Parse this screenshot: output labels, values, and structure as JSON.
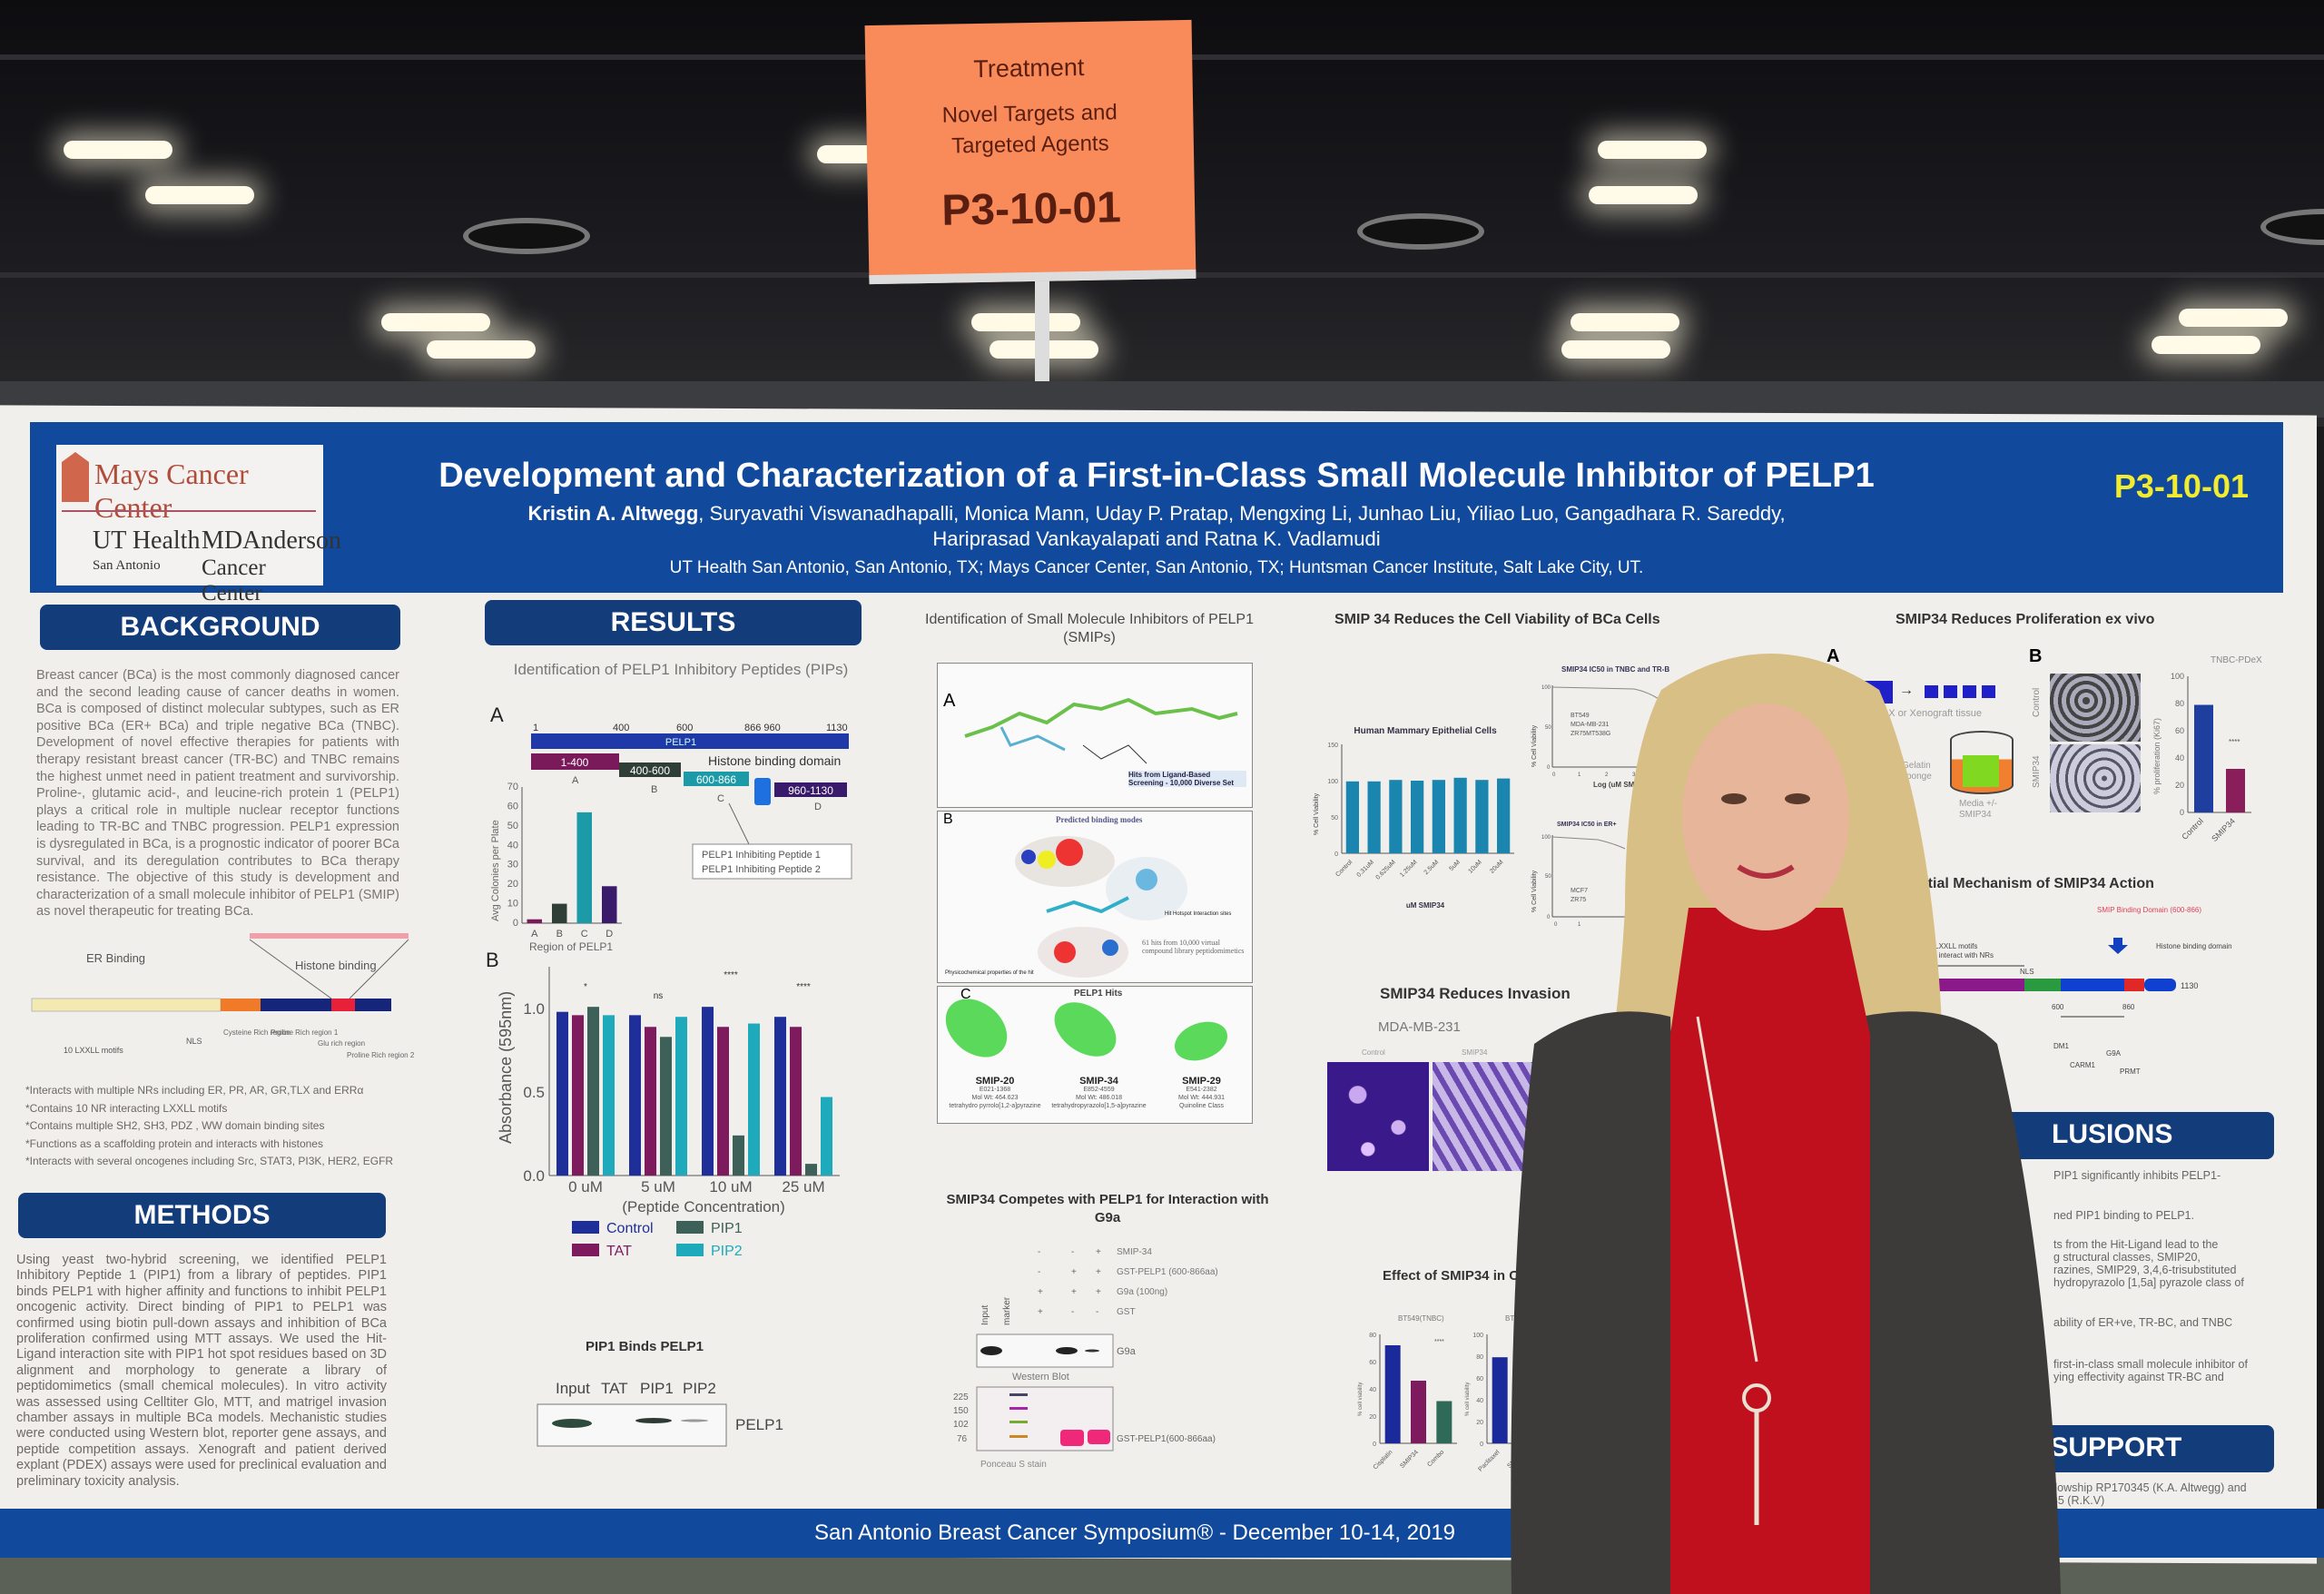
{
  "sign": {
    "category": "Treatment",
    "topic": "Novel Targets and Targeted Agents",
    "poster_id": "P3-10-01"
  },
  "header": {
    "logo": {
      "line1": "Mays Cancer Center",
      "line2a": "UT Health",
      "line2b": "MDAnderson",
      "line3a": "San Antonio",
      "line3b": "Cancer Center"
    },
    "title": "Development and Characterization of a First-in-Class Small Molecule Inhibitor of PELP1",
    "authors_lead": "Kristin A. Altwegg",
    "authors_rest": ", Suryavathi Viswanadhapalli, Monica Mann, Uday P. Pratap, Mengxing Li, Junhao Liu, Yiliao Luo, Gangadhara R. Sareddy,",
    "authors_line2": "Hariprasad Vankayalapati and Ratna K. Vadlamudi",
    "affiliations": "UT Health San Antonio, San Antonio, TX; Mays Cancer Center, San Antonio, TX; Huntsman Cancer Institute, Salt Lake City, UT.",
    "poster_id": "P3-10-01"
  },
  "background": {
    "heading": "BACKGROUND",
    "text": "Breast cancer (BCa) is the most commonly diagnosed cancer and the second leading cause of cancer deaths in women. BCa is composed of distinct molecular subtypes, such as ER positive BCa (ER+ BCa) and triple negative BCa (TNBC). Development of novel effective therapies for patients with therapy resistant breast cancer (TR-BC) and TNBC remains the highest unmet need in patient treatment and survivorship. Proline-, glutamic acid-, and leucine-rich protein 1 (PELP1) plays a critical role in multiple nuclear receptor functions leading to TR-BC and TNBC progression. PELP1 expression is dysregulated in BCa, is a prognostic indicator of poorer BCa survival, and its deregulation contributes to BCa therapy resistance. The objective of this study is development and characterization of a small molecule inhibitor of PELP1 (SMIP) as novel therapeutic for treating BCa.",
    "diagram": {
      "er_binding": "ER Binding",
      "histone_binding": "Histone binding",
      "motifs": "10 LXXLL motifs",
      "nls": "NLS",
      "regions": [
        "Cysteine Rich region",
        "Proline Rich region 1",
        "Glu rich region",
        "Proline Rich region 2"
      ]
    },
    "bullets": [
      "*Interacts with multiple NRs including ER, PR, AR, GR,TLX and ERRα",
      "*Contains 10 NR interacting LXXLL motifs",
      "*Contains multiple SH2, SH3, PDZ , WW domain binding sites",
      "*Functions as a scaffolding protein and interacts with histones",
      "*Interacts with several oncogenes including Src, STAT3, PI3K, HER2, EGFR"
    ]
  },
  "methods": {
    "heading": "METHODS",
    "text": "Using yeast two-hybrid screening, we identified PELP1 Inhibitory Peptide 1 (PIP1) from a library of peptides. PIP1 binds PELP1 with higher affinity and functions to inhibit PELP1 oncogenic activity. Direct binding of PIP1 to PELP1 was confirmed using biotin pull-down assays and inhibition of BCa proliferation confirmed using MTT assays. We used the Hit-Ligand interaction site with PIP1 hot spot residues based on 3D alignment and morphology to generate a library of peptidomimetics (small chemical molecules). In vitro activity was assessed using Celltiter Glo, MTT, and matrigel invasion chamber assays in multiple BCa models. Mechanistic studies were conducted using Western blot, reporter gene assays, and peptide competition assays. Xenograft and patient derived explant (PDEX) assays were used for preclinical evaluation and preliminary toxicity analysis."
  },
  "results": {
    "heading": "RESULTS",
    "pips_title": "Identification of PELP1 Inhibitory Peptides (PIPs)",
    "panel_a": "A",
    "panel_b": "B",
    "map": {
      "ticks": [
        "1",
        "400",
        "600",
        "866 960",
        "1130"
      ],
      "pelp1": "PELP1",
      "frags": [
        "1-400",
        "400-600",
        "600-866",
        "960-1130"
      ],
      "frag_letters": [
        "A",
        "B",
        "C",
        "D"
      ],
      "histone": "Histone binding domain",
      "callout": [
        "PELP1 Inhibiting Peptide 1",
        "PELP1 Inhibiting Peptide 2"
      ]
    },
    "chart_a": {
      "ylabel": "Avg Colonies per Plate",
      "xlabel": "Region of PELP1",
      "categories": [
        "A",
        "B",
        "C",
        "D"
      ],
      "values": [
        2,
        10,
        57,
        19
      ],
      "ylim": [
        0,
        70
      ],
      "yticks": [
        0,
        10,
        20,
        30,
        40,
        50,
        60,
        70
      ],
      "colors": [
        "#7a1a5a",
        "#2f3f38",
        "#1c9aa8",
        "#3a1a6a"
      ]
    },
    "chart_b": {
      "ylabel": "Absorbance (595nm)",
      "xlabel": "(Peptide Concentration)",
      "categories": [
        "0 uM",
        "5 uM",
        "10 uM",
        "25 uM"
      ],
      "ylim": [
        0,
        1.25
      ],
      "yticks": [
        "0.0",
        "0.5",
        "1.0"
      ],
      "sig": [
        "*",
        "ns",
        "****",
        "****"
      ],
      "series": [
        {
          "name": "Control",
          "values": [
            0.98,
            0.96,
            1.01,
            0.95
          ],
          "color": "#1f2f9a"
        },
        {
          "name": "TAT",
          "values": [
            0.96,
            0.89,
            0.89,
            0.89
          ],
          "color": "#7e1a5e"
        },
        {
          "name": "PIP1",
          "values": [
            1.01,
            0.83,
            0.24,
            0.07
          ],
          "color": "#3d6158"
        },
        {
          "name": "PIP2",
          "values": [
            0.96,
            0.95,
            0.91,
            0.47
          ],
          "color": "#1eaabb"
        }
      ]
    },
    "pip1_title": "PIP1 Binds PELP1",
    "pip1_lanes": [
      "Input",
      "TAT",
      "PIP1",
      "PIP2"
    ],
    "pip1_band": "PELP1"
  },
  "smips": {
    "title": "Identification of Small Molecule Inhibitors of PELP1 (SMIPs)",
    "panel_a": "A",
    "panel_a_note": "Hits from Ligand-Based Screening - 10,000 Diverse Set",
    "panel_b": "B",
    "panel_b_title": "Predicted binding modes",
    "panel_b_note": "61 hits from 10,000 virtual compound library peptidomimetics",
    "panel_b_site": "Hit Hotspot Interaction sites",
    "panel_b_props": "Physicochemical properties of the hit",
    "panel_c": "C",
    "panel_c_title": "PELP1 Hits",
    "hits": [
      {
        "name": "SMIP-20",
        "id": "E021-1368",
        "mw": "Mol Wt: 464.623",
        "cls": "tetrahydro pyrrolo[1,2-a]pyrazine"
      },
      {
        "name": "SMIP-34",
        "id": "E852-4559",
        "mw": "Mol Wt: 486.018",
        "cls": "tetrahydropyrazolo[1,5-a]pyrazine"
      },
      {
        "name": "SMIP-29",
        "id": "E541-2382",
        "mw": "Mol Wt: 444.931",
        "cls": "Quinoline Class"
      }
    ]
  },
  "competes": {
    "title": "SMIP34 Competes with PELP1 for Interaction with G9a",
    "rows": [
      {
        "label": "SMIP-34",
        "signs": [
          "-",
          "-",
          "+"
        ]
      },
      {
        "label": "GST-PELP1 (600-866aa)",
        "signs": [
          "-",
          "+",
          "+"
        ]
      },
      {
        "label": "G9a (100ng)",
        "signs": [
          "+",
          "+",
          "+"
        ]
      },
      {
        "label": "GST",
        "signs": [
          "+",
          "-",
          "-"
        ]
      }
    ],
    "lanes": [
      "Input",
      "marker"
    ],
    "band": "G9a",
    "wb": "Western Blot",
    "markers": [
      "225",
      "150",
      "102",
      "76"
    ],
    "ponceau_band": "GST-PELP1(600-866aa)",
    "ponceau": "Ponceau S stain"
  },
  "viability": {
    "title": "SMIP 34 Reduces the Cell Viability of BCa Cells",
    "hmec": {
      "title": "Human Mammary Epithelial Cells",
      "ylabel": "% Cell Viability",
      "xlabel": "uM SMIP34",
      "categories": [
        "Control",
        "0.31uM",
        "0.625uM",
        "1.25uM",
        "2.5uM",
        "5uM",
        "10uM",
        "20uM"
      ],
      "values": [
        99,
        99,
        101,
        100,
        101,
        104,
        101,
        103
      ],
      "ylim": [
        0,
        150
      ],
      "yticks": [
        0,
        50,
        100,
        150
      ],
      "color": "#1a86b0"
    },
    "ic50_tnbc": {
      "title": "SMIP34 IC50 in TNBC and TR-B",
      "ylabel": "% Cell Viability",
      "xlabel": "Log (uM SMIP",
      "legend": [
        "BT549",
        "MDA-MB-231",
        "ZR75MT538G"
      ],
      "xticks": [
        "0",
        "1",
        "2",
        "3"
      ],
      "yticks": [
        "0",
        "50",
        "100"
      ]
    },
    "ic50_er": {
      "title": "SMIP34 IC50 in ER+",
      "ylabel": "% Cell Viability",
      "legend": [
        "MCF7",
        "ZR75"
      ],
      "xticks": [
        "0",
        "1"
      ],
      "yticks": [
        "0",
        "50",
        "100"
      ]
    }
  },
  "invasion": {
    "title": "SMIP34  Reduces Invasion",
    "cell_line": "MDA-MB-231",
    "labels": [
      "Control",
      "SMIP34"
    ]
  },
  "combo": {
    "title": "Effect of SMIP34 in Co",
    "charts": [
      {
        "title": "BT549(TNBC)",
        "ylabel": "% cell viability",
        "categories": [
          "Cisplatin",
          "SMIP34",
          "Combo"
        ],
        "values": [
          72,
          46,
          31
        ],
        "ylim": [
          0,
          80
        ],
        "yticks": [
          0,
          20,
          40,
          60,
          80
        ]
      },
      {
        "title": "BT549(",
        "ylabel": "% cell viability",
        "categories": [
          "Paclitaxel",
          "SMIP34",
          "Combo"
        ],
        "values": [
          79,
          55,
          33
        ],
        "ylim": [
          0,
          100
        ],
        "yticks": [
          0,
          20,
          40,
          60,
          80,
          100
        ]
      }
    ],
    "colors": [
      "#1a2a9a",
      "#7e1a5e",
      "#2f6a58"
    ],
    "sig": "****"
  },
  "exvivo": {
    "title": "SMIP34 Reduces Proliferation ex vivo",
    "panel_a": "A",
    "panel_b": "B",
    "pdx": "PDX or Xenograft tissue",
    "gelatin": "Gelatin sponge",
    "media": "Media +/- SMIP34",
    "row_labels": [
      "Control",
      "SMIP34"
    ],
    "chart": {
      "title": "TNBC-PDeX",
      "ylabel": "% proliferation (Ki67)",
      "categories": [
        "Control",
        "SMIP34"
      ],
      "values": [
        79,
        32
      ],
      "ylim": [
        0,
        100
      ],
      "yticks": [
        0,
        20,
        40,
        60,
        80,
        100
      ],
      "colors": [
        "#1f3fa0",
        "#8a1e5a"
      ],
      "sig": "****"
    }
  },
  "mechanism": {
    "title": "ential Mechanism of SMIP34 Action",
    "motifs": "10 LXXLL motifs",
    "motifs2": "that interact with NRs",
    "nls": "NLS",
    "smip_domain": "SMIP Binding Domain (600-866)",
    "histone": "Histone binding domain",
    "end": "1130",
    "pos600": "600",
    "pos860": "860",
    "partners": [
      "DM1",
      "CARM1",
      "G9A",
      "PRMT"
    ]
  },
  "conclusions": {
    "heading": "LUSIONS",
    "lines": [
      "PIP1 significantly inhibits PELP1-",
      "ned PIP1 binding to PELP1.",
      "ts from the Hit-Ligand lead to the",
      "g structural classes, SMIP20,",
      "razines, SMIP29, 3,4,6-trisubstituted",
      "hydropyrazolo [1,5a] pyrazole class of",
      "ability of ER+ve, TR-BC,  and TNBC",
      "first-in-class small molecule inhibitor of",
      "ying effectivity against TR-BC and"
    ]
  },
  "grant": {
    "heading": "NT SUPPORT",
    "lines": [
      "Fellowship RP170345 (K.A. Altwegg) and",
      "4545 (R.K.V)"
    ]
  },
  "footer": {
    "text": "San Antonio Breast Cancer Symposium® - December 10-14, 2019"
  }
}
